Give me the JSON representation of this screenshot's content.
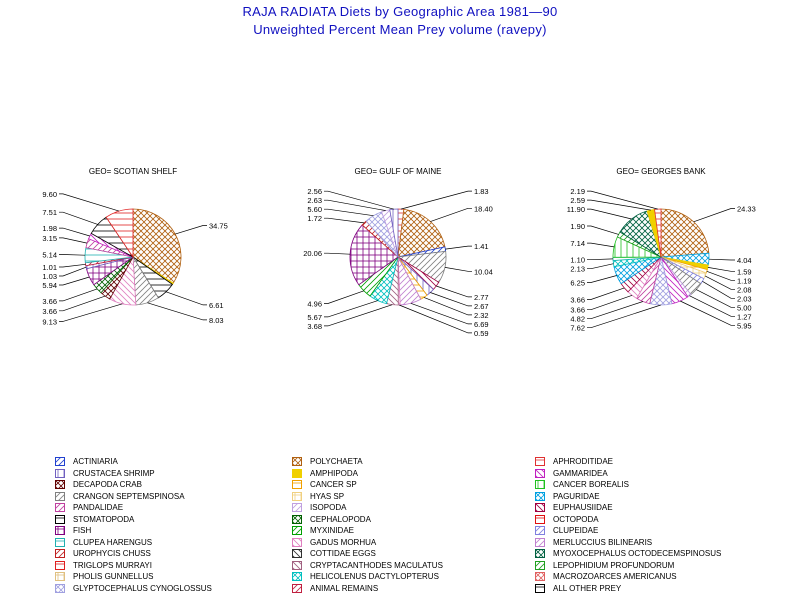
{
  "title": "RAJA RADIATA Diets by Geographic Area 1981—90",
  "subtitle": "Unweighted Percent Mean Prey volume (ravepy)",
  "legend_items": [
    {
      "label": "ACTINIARIA",
      "color": "#2040d0",
      "pattern": "fdiag"
    },
    {
      "label": "CRUSTACEA SHRIMP",
      "color": "#7060c0",
      "pattern": "vert"
    },
    {
      "label": "DECAPODA CRAB",
      "color": "#600000",
      "pattern": "xhatch"
    },
    {
      "label": "CRANGON SEPTEMSPINOSA",
      "color": "#808080",
      "pattern": "fdiag"
    },
    {
      "label": "PANDALIDAE",
      "color": "#c040a0",
      "pattern": "fdiag"
    },
    {
      "label": "STOMATOPODA",
      "color": "#000000",
      "pattern": "horiz"
    },
    {
      "label": "FISH",
      "color": "#800080",
      "pattern": "grid"
    },
    {
      "label": "CLUPEA HARENGUS",
      "color": "#20b0b0",
      "pattern": "hatch"
    },
    {
      "label": "UROPHYCIS CHUSS",
      "color": "#c02020",
      "pattern": "fdiag"
    },
    {
      "label": "TRIGLOPS MURRAYI",
      "color": "#e02020",
      "pattern": "horiz"
    },
    {
      "label": "PHOLIS GUNNELLUS",
      "color": "#e0c080",
      "pattern": "grid"
    },
    {
      "label": "GLYPTOCEPHALUS CYNOGLOSSUS",
      "color": "#a0a0e0",
      "pattern": "xhatch"
    },
    {
      "label": "POLYCHAETA",
      "color": "#b06010",
      "pattern": "xhatch"
    },
    {
      "label": "AMPHIPODA",
      "color": "#f0d000",
      "pattern": "solid"
    },
    {
      "label": "CANCER SP",
      "color": "#f0a000",
      "pattern": "horiz"
    },
    {
      "label": "HYAS SP",
      "color": "#f0d080",
      "pattern": "grid"
    },
    {
      "label": "ISOPODA",
      "color": "#c0a0e0",
      "pattern": "fdiag"
    },
    {
      "label": "CEPHALOPODA",
      "color": "#006000",
      "pattern": "xhatch"
    },
    {
      "label": "MYXINIDAE",
      "color": "#00a000",
      "pattern": "fdiag"
    },
    {
      "label": "GADUS MORHUA",
      "color": "#e080c0",
      "pattern": "bdiag"
    },
    {
      "label": "COTTIDAE EGGS",
      "color": "#303030",
      "pattern": "bdiag"
    },
    {
      "label": "CRYPTACANTHODES MACULATUS",
      "color": "#a06080",
      "pattern": "bdiag"
    },
    {
      "label": "HELICOLENUS DACTYLOPTERUS",
      "color": "#00c0c0",
      "pattern": "xhatch"
    },
    {
      "label": "ANIMAL REMAINS",
      "color": "#c02040",
      "pattern": "fdiag"
    },
    {
      "label": "APHRODITIDAE",
      "color": "#e03030",
      "pattern": "horiz"
    },
    {
      "label": "GAMMARIDEA",
      "color": "#c020c0",
      "pattern": "bdiag"
    },
    {
      "label": "CANCER BOREALIS",
      "color": "#20c020",
      "pattern": "vert"
    },
    {
      "label": "PAGURIDAE",
      "color": "#00a0e0",
      "pattern": "xhatch"
    },
    {
      "label": "EUPHAUSIIDAE",
      "color": "#a00040",
      "pattern": "bdiag"
    },
    {
      "label": "OCTOPODA",
      "color": "#e01010",
      "pattern": "horiz"
    },
    {
      "label": "CLUPEIDAE",
      "color": "#8080e0",
      "pattern": "fdiag"
    },
    {
      "label": "MERLUCCIUS BILINEARIS",
      "color": "#c080d0",
      "pattern": "fdiag"
    },
    {
      "label": "MYOXOCEPHALUS OCTODECEMSPINOSUS",
      "color": "#006040",
      "pattern": "xhatch"
    },
    {
      "label": "LEPOPHIDIUM PROFUNDORUM",
      "color": "#20a020",
      "pattern": "fdiag"
    },
    {
      "label": "MACROZOARCES AMERICANUS",
      "color": "#e06060",
      "pattern": "xhatch"
    },
    {
      "label": "ALL OTHER PREY",
      "color": "#000000",
      "pattern": "horiz"
    }
  ],
  "chart_data": [
    {
      "type": "pie",
      "title": "GEO= SCOTIAN SHELF",
      "slices": [
        {
          "prey": "POLYCHAETA",
          "value": 34.75,
          "label": "34.75"
        },
        {
          "prey": "AMPHIPODA",
          "value": 0.5,
          "label": ""
        },
        {
          "prey": "ALL OTHER PREY",
          "value": 6.61,
          "label": "6.61"
        },
        {
          "prey": "CRANGON SEPTEMSPINOSA",
          "value": 8.03,
          "label": "8.03"
        },
        {
          "prey": "GADUS MORHUA",
          "value": 9.13,
          "label": "9.13"
        },
        {
          "prey": "DECAPODA CRAB",
          "value": 3.66,
          "label": "3.66"
        },
        {
          "prey": "CEPHALOPODA",
          "value": 3.66,
          "label": "3.66"
        },
        {
          "prey": "FISH",
          "value": 5.94,
          "label": "5.94"
        },
        {
          "prey": "CRUSTACEA SHRIMP",
          "value": 1.03,
          "label": "1.03"
        },
        {
          "prey": "ANIMAL REMAINS",
          "value": 1.01,
          "label": "1.01"
        },
        {
          "prey": "CLUPEA HARENGUS",
          "value": 5.14,
          "label": "5.14"
        },
        {
          "prey": "PANDALIDAE",
          "value": 3.15,
          "label": "3.15"
        },
        {
          "prey": "GAMMARIDEA",
          "value": 1.98,
          "label": "1.98"
        },
        {
          "prey": "STOMATOPODA",
          "value": 7.51,
          "label": "7.51"
        },
        {
          "prey": "TRIGLOPS MURRAYI",
          "value": 9.6,
          "label": "9.60"
        }
      ]
    },
    {
      "type": "pie",
      "title": "GEO= GULF OF MAINE",
      "slices": [
        {
          "prey": "APHRODITIDAE",
          "value": 1.83,
          "label": "1.83"
        },
        {
          "prey": "POLYCHAETA",
          "value": 18.4,
          "label": "18.40"
        },
        {
          "prey": "ACTINIARIA",
          "value": 1.41,
          "label": "1.41"
        },
        {
          "prey": "CRANGON SEPTEMSPINOSA",
          "value": 10.04,
          "label": "10.04"
        },
        {
          "prey": "EUPHAUSIIDAE",
          "value": 2.77,
          "label": "2.77"
        },
        {
          "prey": "CRUSTACEA SHRIMP",
          "value": 2.67,
          "label": "2.67"
        },
        {
          "prey": "CANCER SP",
          "value": 2.32,
          "label": "2.32"
        },
        {
          "prey": "MERLUCCIUS BILINEARIS",
          "value": 6.69,
          "label": "6.69"
        },
        {
          "prey": "GADUS MORHUA",
          "value": 0.59,
          "label": "0.59"
        },
        {
          "prey": "CRYPTACANTHODES MACULATUS",
          "value": 3.68,
          "label": "3.68"
        },
        {
          "prey": "HELICOLENUS DACTYLOPTERUS",
          "value": 5.67,
          "label": "5.67"
        },
        {
          "prey": "MYXINIDAE",
          "value": 4.96,
          "label": "4.96"
        },
        {
          "prey": "FISH",
          "value": 20.06,
          "label": "20.06"
        },
        {
          "prey": "UROPHYCIS CHUSS",
          "value": 1.72,
          "label": "1.72"
        },
        {
          "prey": "GLYPTOCEPHALUS CYNOGLOSSUS",
          "value": 5.6,
          "label": "5.60"
        },
        {
          "prey": "ISOPODA",
          "value": 2.63,
          "label": "2.63"
        },
        {
          "prey": "CRUSTACEA SHRIMP",
          "value": 2.56,
          "label": "2.56"
        }
      ]
    },
    {
      "type": "pie",
      "title": "GEO= GEORGES BANK",
      "slices": [
        {
          "prey": "POLYCHAETA",
          "value": 24.33,
          "label": "24.33"
        },
        {
          "prey": "PAGURIDAE",
          "value": 4.04,
          "label": "4.04"
        },
        {
          "prey": "AMPHIPODA",
          "value": 1.59,
          "label": "1.59"
        },
        {
          "prey": "CANCER SP",
          "value": 1.19,
          "label": "1.19"
        },
        {
          "prey": "HYAS SP",
          "value": 2.08,
          "label": "2.08"
        },
        {
          "prey": "CLUPEIDAE",
          "value": 2.03,
          "label": "2.03"
        },
        {
          "prey": "CRANGON SEPTEMSPINOSA",
          "value": 5.0,
          "label": "5.00"
        },
        {
          "prey": "ISOPODA",
          "value": 1.27,
          "label": "1.27"
        },
        {
          "prey": "GAMMARIDEA",
          "value": 5.95,
          "label": "5.95"
        },
        {
          "prey": "GLYPTOCEPHALUS CYNOGLOSSUS",
          "value": 7.62,
          "label": "7.62"
        },
        {
          "prey": "PANDALIDAE",
          "value": 4.82,
          "label": "4.82"
        },
        {
          "prey": "GADUS MORHUA",
          "value": 3.66,
          "label": "3.66"
        },
        {
          "prey": "EUPHAUSIIDAE",
          "value": 3.66,
          "label": "3.66"
        },
        {
          "prey": "PAGURIDAE",
          "value": 6.25,
          "label": "6.25"
        },
        {
          "prey": "HELICOLENUS DACTYLOPTERUS",
          "value": 2.13,
          "label": "2.13"
        },
        {
          "prey": "CLUPEA HARENGUS",
          "value": 1.1,
          "label": "1.10"
        },
        {
          "prey": "CANCER BOREALIS",
          "value": 7.14,
          "label": "7.14"
        },
        {
          "prey": "LEPOPHIDIUM PROFUNDORUM",
          "value": 1.9,
          "label": "1.90"
        },
        {
          "prey": "MYOXOCEPHALUS OCTODECEMSPINOSUS",
          "value": 11.9,
          "label": "11.90"
        },
        {
          "prey": "AMPHIPODA",
          "value": 2.59,
          "label": "2.59"
        },
        {
          "prey": "APHRODITIDAE",
          "value": 2.19,
          "label": "2.19"
        }
      ]
    }
  ]
}
